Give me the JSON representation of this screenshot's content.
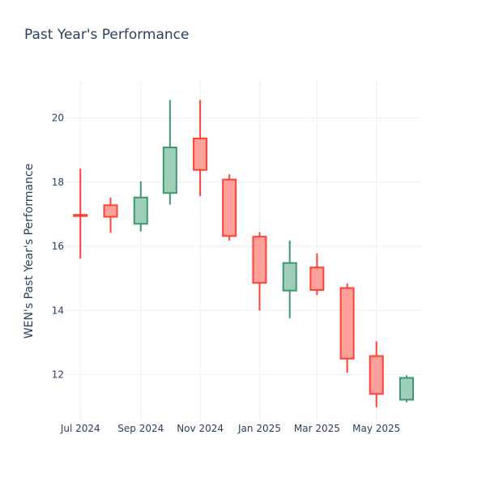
{
  "chart_data": {
    "type": "candlestick",
    "title": "Past Year's Performance",
    "xlabel": "",
    "ylabel": "WEN's Past Year's Performance",
    "x_tick_labels": [
      "Jul 2024",
      "Sep 2024",
      "Nov 2024",
      "Jan 2025",
      "Mar 2025",
      "May 2025"
    ],
    "y_ticks": [
      12,
      14,
      16,
      18,
      20
    ],
    "ylim": [
      10.55,
      21.15
    ],
    "grid": true,
    "colors": {
      "increasing": "#3d9970",
      "increasing_fill": "#9ecdb8",
      "decreasing": "#ff4136",
      "decreasing_fill": "#ffa09b",
      "grid": "#eef0f4",
      "text": "#2a3f5f"
    },
    "candles": [
      {
        "date": "2024-07-01",
        "open": 16.98,
        "high": 18.42,
        "low": 15.62,
        "close": 16.96
      },
      {
        "date": "2024-08-01",
        "open": 17.28,
        "high": 17.52,
        "low": 16.42,
        "close": 16.92
      },
      {
        "date": "2024-09-01",
        "open": 16.7,
        "high": 18.02,
        "low": 16.46,
        "close": 17.52
      },
      {
        "date": "2024-10-01",
        "open": 17.66,
        "high": 20.56,
        "low": 17.3,
        "close": 19.08
      },
      {
        "date": "2024-11-01",
        "open": 19.36,
        "high": 20.56,
        "low": 17.56,
        "close": 18.38
      },
      {
        "date": "2024-12-01",
        "open": 18.08,
        "high": 18.24,
        "low": 16.18,
        "close": 16.32
      },
      {
        "date": "2025-01-01",
        "open": 16.3,
        "high": 16.44,
        "low": 14.0,
        "close": 14.86
      },
      {
        "date": "2025-02-01",
        "open": 14.62,
        "high": 16.18,
        "low": 13.76,
        "close": 15.48
      },
      {
        "date": "2025-03-01",
        "open": 15.34,
        "high": 15.78,
        "low": 14.48,
        "close": 14.64
      },
      {
        "date": "2025-04-01",
        "open": 14.7,
        "high": 14.84,
        "low": 12.06,
        "close": 12.5
      },
      {
        "date": "2025-05-01",
        "open": 12.58,
        "high": 13.04,
        "low": 10.98,
        "close": 11.4
      },
      {
        "date": "2025-06-01",
        "open": 11.22,
        "high": 11.98,
        "low": 11.14,
        "close": 11.9
      }
    ]
  }
}
